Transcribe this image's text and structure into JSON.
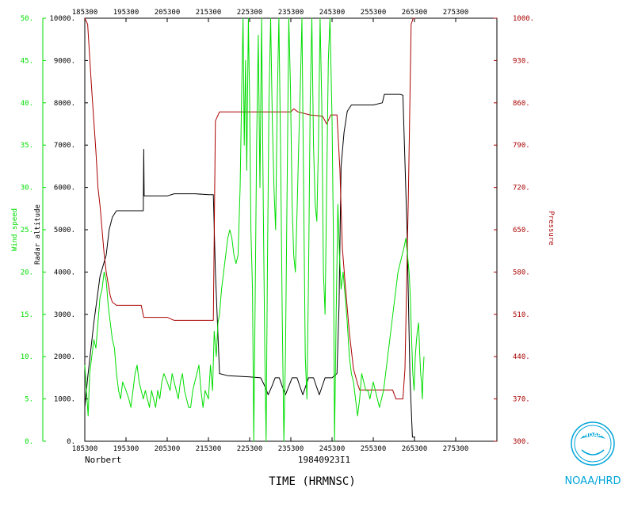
{
  "chart_data": {
    "type": "line",
    "storm_name": "Norbert",
    "flight_id": "19840923I1",
    "xlabel": "TIME (HRMNSC)",
    "x_ticks": [
      "185300",
      "195300",
      "205300",
      "215300",
      "225300",
      "235300",
      "245300",
      "255300",
      "265300",
      "275300"
    ],
    "xlim": [
      185300,
      285300
    ],
    "wind_axis": {
      "label": "Wind speed",
      "color": "#00dd00",
      "ylim": [
        0,
        50
      ],
      "ticks": [
        "0.",
        "5.",
        "10.",
        "15.",
        "20.",
        "25.",
        "30.",
        "35.",
        "40.",
        "45.",
        "50."
      ]
    },
    "altitude_axis": {
      "label": "Radar altitude",
      "color": "#000000",
      "ylim": [
        0,
        10000
      ],
      "ticks": [
        "0.",
        "1000.",
        "2000.",
        "3000.",
        "4000.",
        "5000.",
        "6000.",
        "7000.",
        "8000.",
        "9000.",
        "10000."
      ]
    },
    "pressure_axis": {
      "label": "Pressure",
      "color": "#aa0000",
      "ylim": [
        300,
        1000
      ],
      "ticks": [
        "300.",
        "370.",
        "440.",
        "510.",
        "580.",
        "650.",
        "720.",
        "790.",
        "860.",
        "930.",
        "1000."
      ]
    },
    "series": [
      {
        "name": "Radar altitude",
        "axis": "altitude",
        "color": "#000000",
        "points": [
          [
            185300,
            800
          ],
          [
            186000,
            1500
          ],
          [
            187500,
            2800
          ],
          [
            189000,
            3900
          ],
          [
            190500,
            4400
          ],
          [
            191200,
            5000
          ],
          [
            192000,
            5300
          ],
          [
            193000,
            5450
          ],
          [
            195300,
            5450
          ],
          [
            198000,
            5450
          ],
          [
            199500,
            5450
          ],
          [
            199600,
            6900
          ],
          [
            199700,
            5800
          ],
          [
            202000,
            5800
          ],
          [
            205300,
            5800
          ],
          [
            207000,
            5850
          ],
          [
            212000,
            5850
          ],
          [
            215300,
            5830
          ],
          [
            216500,
            5830
          ],
          [
            217000,
            4000
          ],
          [
            218000,
            1600
          ],
          [
            220000,
            1550
          ],
          [
            225300,
            1520
          ],
          [
            228000,
            1500
          ],
          [
            229000,
            1300
          ],
          [
            229800,
            1100
          ],
          [
            230700,
            1300
          ],
          [
            231500,
            1500
          ],
          [
            232500,
            1500
          ],
          [
            233200,
            1300
          ],
          [
            234000,
            1100
          ],
          [
            234800,
            1300
          ],
          [
            235600,
            1500
          ],
          [
            236800,
            1500
          ],
          [
            237500,
            1300
          ],
          [
            238200,
            1100
          ],
          [
            238900,
            1300
          ],
          [
            239600,
            1500
          ],
          [
            240800,
            1500
          ],
          [
            241500,
            1300
          ],
          [
            242200,
            1100
          ],
          [
            242900,
            1300
          ],
          [
            243600,
            1500
          ],
          [
            245300,
            1500
          ],
          [
            246500,
            1600
          ],
          [
            247000,
            3200
          ],
          [
            247500,
            6500
          ],
          [
            248200,
            7300
          ],
          [
            249000,
            7800
          ],
          [
            250000,
            7950
          ],
          [
            255300,
            7950
          ],
          [
            257500,
            8000
          ],
          [
            258000,
            8200
          ],
          [
            261800,
            8200
          ],
          [
            262500,
            8180
          ],
          [
            263500,
            5000
          ],
          [
            264200,
            1500
          ],
          [
            264800,
            100
          ],
          [
            265500,
            100
          ]
        ]
      },
      {
        "name": "Pressure",
        "axis": "pressure",
        "color": "#aa0000",
        "points": [
          [
            185300,
            1000
          ],
          [
            186000,
            990
          ],
          [
            187000,
            880
          ],
          [
            188000,
            780
          ],
          [
            188500,
            720
          ],
          [
            189000,
            690
          ],
          [
            189500,
            650
          ],
          [
            190000,
            610
          ],
          [
            190500,
            580
          ],
          [
            191000,
            560
          ],
          [
            191500,
            540
          ],
          [
            192000,
            530
          ],
          [
            193000,
            525
          ],
          [
            195300,
            525
          ],
          [
            199000,
            525
          ],
          [
            199600,
            505
          ],
          [
            201000,
            505
          ],
          [
            205300,
            505
          ],
          [
            207000,
            500
          ],
          [
            212000,
            500
          ],
          [
            215300,
            500
          ],
          [
            216500,
            500
          ],
          [
            217000,
            830
          ],
          [
            218000,
            845
          ],
          [
            220000,
            845
          ],
          [
            225300,
            845
          ],
          [
            230000,
            845
          ],
          [
            235300,
            845
          ],
          [
            236000,
            850
          ],
          [
            237000,
            845
          ],
          [
            240000,
            840
          ],
          [
            243000,
            838
          ],
          [
            244000,
            825
          ],
          [
            245000,
            840
          ],
          [
            246500,
            840
          ],
          [
            247200,
            750
          ],
          [
            247800,
            620
          ],
          [
            248500,
            560
          ],
          [
            249000,
            520
          ],
          [
            249500,
            480
          ],
          [
            250000,
            450
          ],
          [
            250500,
            420
          ],
          [
            251500,
            395
          ],
          [
            252000,
            385
          ],
          [
            255300,
            385
          ],
          [
            260000,
            385
          ],
          [
            260800,
            370
          ],
          [
            262500,
            370
          ],
          [
            263000,
            420
          ],
          [
            263800,
            700
          ],
          [
            264500,
            990
          ],
          [
            265000,
            1000
          ],
          [
            265500,
            1000
          ]
        ]
      },
      {
        "name": "Wind speed",
        "axis": "wind",
        "color": "#00dd00",
        "points": [
          [
            185300,
            9
          ],
          [
            185700,
            6
          ],
          [
            186100,
            3
          ],
          [
            186500,
            8
          ],
          [
            187000,
            10
          ],
          [
            187500,
            12
          ],
          [
            188000,
            11
          ],
          [
            189000,
            17
          ],
          [
            189500,
            18
          ],
          [
            190000,
            20
          ],
          [
            190500,
            19
          ],
          [
            191000,
            16
          ],
          [
            191500,
            14
          ],
          [
            192000,
            12
          ],
          [
            192500,
            11
          ],
          [
            193000,
            8
          ],
          [
            193500,
            6
          ],
          [
            194000,
            5
          ],
          [
            194500,
            7
          ],
          [
            195300,
            6
          ],
          [
            196000,
            5
          ],
          [
            196500,
            4
          ],
          [
            197000,
            6
          ],
          [
            197500,
            8
          ],
          [
            198000,
            9
          ],
          [
            198500,
            7
          ],
          [
            199000,
            6
          ],
          [
            199500,
            5
          ],
          [
            200000,
            6
          ],
          [
            200500,
            5
          ],
          [
            201000,
            4
          ],
          [
            201500,
            6
          ],
          [
            202000,
            5
          ],
          [
            202500,
            4
          ],
          [
            203000,
            6
          ],
          [
            203500,
            5
          ],
          [
            204000,
            7
          ],
          [
            204500,
            8
          ],
          [
            205300,
            7
          ],
          [
            206000,
            6
          ],
          [
            206500,
            8
          ],
          [
            207000,
            7
          ],
          [
            207500,
            6
          ],
          [
            208000,
            5
          ],
          [
            208500,
            7
          ],
          [
            209000,
            8
          ],
          [
            209500,
            6
          ],
          [
            210000,
            5
          ],
          [
            210500,
            4
          ],
          [
            211000,
            4
          ],
          [
            211500,
            6
          ],
          [
            212000,
            7
          ],
          [
            212500,
            8
          ],
          [
            213000,
            9
          ],
          [
            213500,
            6
          ],
          [
            214000,
            4
          ],
          [
            214500,
            6
          ],
          [
            215300,
            5
          ],
          [
            215800,
            9
          ],
          [
            216300,
            6
          ],
          [
            216700,
            13
          ],
          [
            217200,
            10
          ],
          [
            217600,
            14
          ],
          [
            218000,
            15
          ],
          [
            218500,
            18
          ],
          [
            219000,
            20
          ],
          [
            219500,
            22
          ],
          [
            220000,
            24
          ],
          [
            220500,
            25
          ],
          [
            221000,
            24
          ],
          [
            221500,
            22
          ],
          [
            222000,
            21
          ],
          [
            222500,
            22
          ],
          [
            223000,
            30
          ],
          [
            223400,
            42
          ],
          [
            223700,
            50
          ],
          [
            224000,
            35
          ],
          [
            224300,
            45
          ],
          [
            224600,
            32
          ],
          [
            225000,
            50
          ],
          [
            225300,
            40
          ],
          [
            225600,
            25
          ],
          [
            226000,
            18
          ],
          [
            226300,
            0
          ],
          [
            226600,
            15
          ],
          [
            227000,
            35
          ],
          [
            227400,
            48
          ],
          [
            227800,
            30
          ],
          [
            228200,
            50
          ],
          [
            228600,
            28
          ],
          [
            229000,
            10
          ],
          [
            229300,
            0
          ],
          [
            229600,
            20
          ],
          [
            230000,
            40
          ],
          [
            230400,
            50
          ],
          [
            230800,
            38
          ],
          [
            231200,
            30
          ],
          [
            231600,
            25
          ],
          [
            232000,
            40
          ],
          [
            232400,
            50
          ],
          [
            232800,
            35
          ],
          [
            233200,
            15
          ],
          [
            233600,
            0
          ],
          [
            234000,
            10
          ],
          [
            234400,
            30
          ],
          [
            234800,
            50
          ],
          [
            235200,
            42
          ],
          [
            235600,
            28
          ],
          [
            236000,
            22
          ],
          [
            236400,
            20
          ],
          [
            236800,
            27
          ],
          [
            237200,
            35
          ],
          [
            237600,
            42
          ],
          [
            238000,
            50
          ],
          [
            238400,
            30
          ],
          [
            238800,
            10
          ],
          [
            239200,
            5
          ],
          [
            239600,
            20
          ],
          [
            240000,
            40
          ],
          [
            240400,
            50
          ],
          [
            240800,
            35
          ],
          [
            241200,
            28
          ],
          [
            241600,
            26
          ],
          [
            242000,
            35
          ],
          [
            242400,
            50
          ],
          [
            242800,
            40
          ],
          [
            243200,
            20
          ],
          [
            243600,
            15
          ],
          [
            244000,
            30
          ],
          [
            244400,
            45
          ],
          [
            244800,
            50
          ],
          [
            245300,
            38
          ],
          [
            245600,
            25
          ],
          [
            245900,
            0
          ],
          [
            246300,
            15
          ],
          [
            246700,
            28
          ],
          [
            247100,
            22
          ],
          [
            247500,
            18
          ],
          [
            248000,
            20
          ],
          [
            248500,
            17
          ],
          [
            249000,
            14
          ],
          [
            249500,
            10
          ],
          [
            250000,
            8
          ],
          [
            250500,
            7
          ],
          [
            251000,
            5
          ],
          [
            251500,
            3
          ],
          [
            252000,
            5
          ],
          [
            252500,
            8
          ],
          [
            253000,
            7
          ],
          [
            253500,
            6
          ],
          [
            254000,
            6
          ],
          [
            254500,
            5
          ],
          [
            255300,
            7
          ],
          [
            255800,
            6
          ],
          [
            256300,
            5
          ],
          [
            256800,
            4
          ],
          [
            257300,
            5
          ],
          [
            257800,
            6
          ],
          [
            258300,
            8
          ],
          [
            258800,
            10
          ],
          [
            259300,
            12
          ],
          [
            259800,
            14
          ],
          [
            260300,
            16
          ],
          [
            260800,
            18
          ],
          [
            261300,
            20
          ],
          [
            261800,
            21
          ],
          [
            262300,
            22
          ],
          [
            262800,
            23
          ],
          [
            263200,
            24
          ],
          [
            263600,
            22
          ],
          [
            264000,
            20
          ],
          [
            264300,
            17
          ],
          [
            264600,
            12
          ],
          [
            264900,
            8
          ],
          [
            265200,
            6
          ],
          [
            265500,
            10
          ],
          [
            265800,
            12
          ],
          [
            266000,
            13
          ],
          [
            266300,
            14
          ],
          [
            266600,
            10
          ],
          [
            266800,
            8
          ],
          [
            267000,
            7
          ],
          [
            267200,
            5
          ],
          [
            267400,
            8
          ],
          [
            267600,
            10
          ]
        ]
      }
    ],
    "grid": false,
    "legend": "none"
  },
  "footer": {
    "storm_name": "Norbert",
    "flight_id": "19840923I1",
    "time_label": "TIME (HRMNSC)",
    "logo_text": "NOAA",
    "logo_caption": "NOAA/HRD"
  }
}
